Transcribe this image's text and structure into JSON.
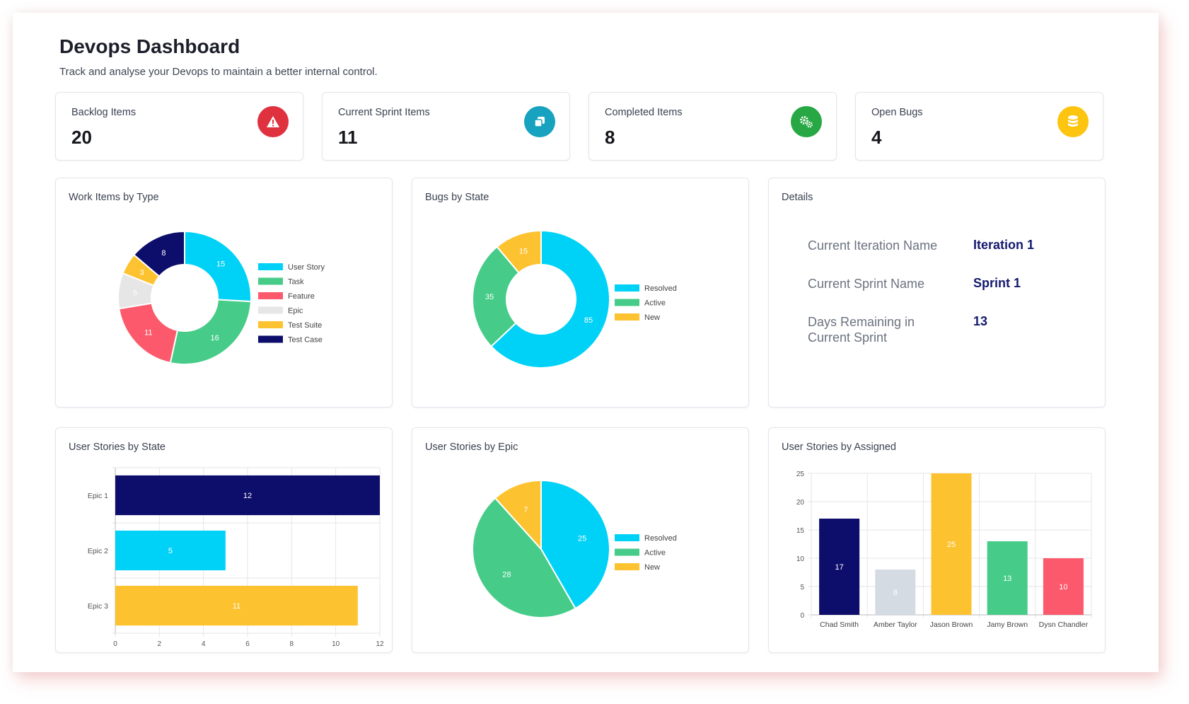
{
  "header": {
    "title": "Devops Dashboard",
    "subtitle": "Track and analyse your Devops to maintain a better internal control."
  },
  "stats": [
    {
      "label": "Backlog Items",
      "value": "20",
      "icon": "warning-icon",
      "color": "#e0313f"
    },
    {
      "label": "Current Sprint Items",
      "value": "11",
      "icon": "copy-icon",
      "color": "#17a3bf"
    },
    {
      "label": "Completed Items",
      "value": "8",
      "icon": "gears-icon",
      "color": "#27a844"
    },
    {
      "label": "Open Bugs",
      "value": "4",
      "icon": "database-icon",
      "color": "#fdc410"
    }
  ],
  "panels": {
    "work_items": "Work Items by Type",
    "bugs": "Bugs by State",
    "details": "Details",
    "stories_state": "User Stories by State",
    "stories_epic": "User Stories by Epic",
    "stories_assigned": "User Stories by Assigned"
  },
  "details": [
    {
      "label": "Current Iteration Name",
      "value": "Iteration 1"
    },
    {
      "label": "Current Sprint Name",
      "value": "Sprint 1"
    },
    {
      "label": "Days Remaining in Current Sprint",
      "value": "13"
    }
  ],
  "chart_data": [
    {
      "type": "pie",
      "variant": "doughnut",
      "title": "Work Items by Type",
      "labels": [
        "User Story",
        "Task",
        "Feature",
        "Epic",
        "Test Suite",
        "Test Case"
      ],
      "values": [
        15,
        16,
        11,
        5,
        3,
        8
      ],
      "colors": [
        "#00d2f7",
        "#46cc88",
        "#fc5a6c",
        "#e6e6e6",
        "#fdc22f",
        "#0d0d6b"
      ],
      "legend": "right"
    },
    {
      "type": "pie",
      "variant": "doughnut",
      "title": "Bugs by State",
      "labels": [
        "Resolved",
        "Active",
        "New"
      ],
      "values": [
        85,
        35,
        15
      ],
      "colors": [
        "#00d2f7",
        "#46cc88",
        "#fdc22f"
      ],
      "legend": "right"
    },
    {
      "type": "bar",
      "orientation": "horizontal",
      "title": "User Stories by State",
      "categories": [
        "Epic 1",
        "Epic 2",
        "Epic 3"
      ],
      "values": [
        12,
        5,
        11
      ],
      "colors": [
        "#0d0d6b",
        "#00d2f7",
        "#fdc22f"
      ],
      "xlim": [
        0,
        12
      ],
      "xticks": [
        "0",
        "2",
        "4",
        "6",
        "8",
        "10",
        "12"
      ],
      "grid": true
    },
    {
      "type": "pie",
      "title": "User Stories by Epic",
      "labels": [
        "Resolved",
        "Active",
        "New"
      ],
      "values": [
        25,
        28,
        7
      ],
      "colors": [
        "#00d2f7",
        "#46cc88",
        "#fdc22f"
      ],
      "legend": "right"
    },
    {
      "type": "bar",
      "title": "User Stories by Assigned",
      "categories": [
        "Chad Smith",
        "Amber Taylor",
        "Jason Brown",
        "Jamy Brown",
        "Dysn Chandler"
      ],
      "values": [
        17,
        8,
        25,
        13,
        10
      ],
      "colors": [
        "#0d0d6b",
        "#d5dbe3",
        "#fdc22f",
        "#46cc88",
        "#fc5a6c"
      ],
      "ylim": [
        0,
        25
      ],
      "yticks": [
        "0",
        "5",
        "10",
        "15",
        "20",
        "25"
      ],
      "grid": true
    }
  ]
}
